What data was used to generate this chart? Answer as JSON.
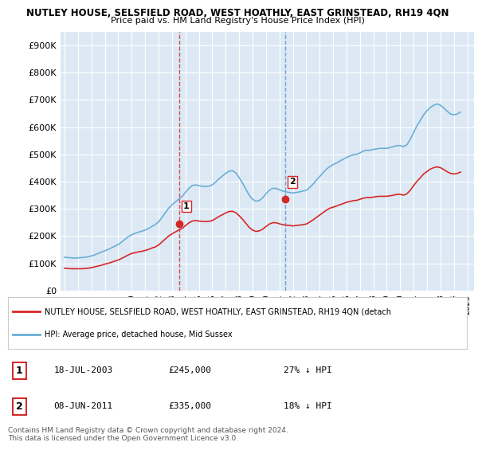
{
  "title_line1": "NUTLEY HOUSE, SELSFIELD ROAD, WEST HOATHLY, EAST GRINSTEAD, RH19 4QN",
  "title_line2": "Price paid vs. HM Land Registry's House Price Index (HPI)",
  "ylabel_ticks": [
    "£0",
    "£100K",
    "£200K",
    "£300K",
    "£400K",
    "£500K",
    "£600K",
    "£700K",
    "£800K",
    "£900K"
  ],
  "ytick_vals": [
    0,
    100000,
    200000,
    300000,
    400000,
    500000,
    600000,
    700000,
    800000,
    900000
  ],
  "xlim_start": 1995.0,
  "xlim_end": 2025.5,
  "ylim": [
    0,
    950000
  ],
  "hpi_color": "#6baed6",
  "price_color": "#d62728",
  "dashed_color": "#d62728",
  "bg_plot": "#dce9f5",
  "bg_fig": "#ffffff",
  "grid_color": "#ffffff",
  "sale1_x": 2003.54,
  "sale1_y": 245000,
  "sale1_label": "1",
  "sale2_x": 2011.44,
  "sale2_y": 335000,
  "sale2_label": "2",
  "legend_line1": "NUTLEY HOUSE, SELSFIELD ROAD, WEST HOATHLY, EAST GRINSTEAD, RH19 4QN (detach",
  "legend_line2": "HPI: Average price, detached house, Mid Sussex",
  "table_row1_num": "1",
  "table_row1_date": "18-JUL-2003",
  "table_row1_price": "£245,000",
  "table_row1_hpi": "27% ↓ HPI",
  "table_row2_num": "2",
  "table_row2_date": "08-JUN-2011",
  "table_row2_price": "£335,000",
  "table_row2_hpi": "18% ↓ HPI",
  "footer": "Contains HM Land Registry data © Crown copyright and database right 2024.\nThis data is licensed under the Open Government Licence v3.0.",
  "hpi_data_x": [
    1995.0,
    1995.25,
    1995.5,
    1995.75,
    1996.0,
    1996.25,
    1996.5,
    1996.75,
    1997.0,
    1997.25,
    1997.5,
    1997.75,
    1998.0,
    1998.25,
    1998.5,
    1998.75,
    1999.0,
    1999.25,
    1999.5,
    1999.75,
    2000.0,
    2000.25,
    2000.5,
    2000.75,
    2001.0,
    2001.25,
    2001.5,
    2001.75,
    2002.0,
    2002.25,
    2002.5,
    2002.75,
    2003.0,
    2003.25,
    2003.5,
    2003.75,
    2004.0,
    2004.25,
    2004.5,
    2004.75,
    2005.0,
    2005.25,
    2005.5,
    2005.75,
    2006.0,
    2006.25,
    2006.5,
    2006.75,
    2007.0,
    2007.25,
    2007.5,
    2007.75,
    2008.0,
    2008.25,
    2008.5,
    2008.75,
    2009.0,
    2009.25,
    2009.5,
    2009.75,
    2010.0,
    2010.25,
    2010.5,
    2010.75,
    2011.0,
    2011.25,
    2011.5,
    2011.75,
    2012.0,
    2012.25,
    2012.5,
    2012.75,
    2013.0,
    2013.25,
    2013.5,
    2013.75,
    2014.0,
    2014.25,
    2014.5,
    2014.75,
    2015.0,
    2015.25,
    2015.5,
    2015.75,
    2016.0,
    2016.25,
    2016.5,
    2016.75,
    2017.0,
    2017.25,
    2017.5,
    2017.75,
    2018.0,
    2018.25,
    2018.5,
    2018.75,
    2019.0,
    2019.25,
    2019.5,
    2019.75,
    2020.0,
    2020.25,
    2020.5,
    2020.75,
    2021.0,
    2021.25,
    2021.5,
    2021.75,
    2022.0,
    2022.25,
    2022.5,
    2022.75,
    2023.0,
    2023.25,
    2023.5,
    2023.75,
    2024.0,
    2024.25,
    2024.5
  ],
  "hpi_data_y": [
    122000,
    121000,
    120000,
    119000,
    120000,
    121000,
    122000,
    124000,
    127000,
    131000,
    136000,
    141000,
    146000,
    151000,
    157000,
    163000,
    169000,
    178000,
    188000,
    198000,
    205000,
    210000,
    214000,
    218000,
    222000,
    228000,
    235000,
    242000,
    252000,
    268000,
    285000,
    302000,
    315000,
    325000,
    335000,
    345000,
    360000,
    375000,
    385000,
    388000,
    385000,
    383000,
    382000,
    383000,
    388000,
    398000,
    410000,
    420000,
    430000,
    438000,
    440000,
    432000,
    415000,
    395000,
    372000,
    350000,
    335000,
    328000,
    330000,
    340000,
    355000,
    368000,
    375000,
    375000,
    370000,
    365000,
    362000,
    360000,
    358000,
    360000,
    362000,
    365000,
    368000,
    378000,
    390000,
    405000,
    418000,
    432000,
    445000,
    455000,
    462000,
    468000,
    475000,
    482000,
    488000,
    494000,
    498000,
    500000,
    505000,
    512000,
    515000,
    515000,
    518000,
    520000,
    522000,
    522000,
    522000,
    525000,
    528000,
    532000,
    532000,
    528000,
    535000,
    555000,
    580000,
    605000,
    625000,
    645000,
    660000,
    672000,
    680000,
    685000,
    680000,
    670000,
    658000,
    648000,
    645000,
    648000,
    655000
  ],
  "price_data_x": [
    1995.0,
    1995.25,
    1995.5,
    1995.75,
    1996.0,
    1996.25,
    1996.5,
    1996.75,
    1997.0,
    1997.25,
    1997.5,
    1997.75,
    1998.0,
    1998.25,
    1998.5,
    1998.75,
    1999.0,
    1999.25,
    1999.5,
    1999.75,
    2000.0,
    2000.25,
    2000.5,
    2000.75,
    2001.0,
    2001.25,
    2001.5,
    2001.75,
    2002.0,
    2002.25,
    2002.5,
    2002.75,
    2003.0,
    2003.25,
    2003.5,
    2003.75,
    2004.0,
    2004.25,
    2004.5,
    2004.75,
    2005.0,
    2005.25,
    2005.5,
    2005.75,
    2006.0,
    2006.25,
    2006.5,
    2006.75,
    2007.0,
    2007.25,
    2007.5,
    2007.75,
    2008.0,
    2008.25,
    2008.5,
    2008.75,
    2009.0,
    2009.25,
    2009.5,
    2009.75,
    2010.0,
    2010.25,
    2010.5,
    2010.75,
    2011.0,
    2011.25,
    2011.5,
    2011.75,
    2012.0,
    2012.25,
    2012.5,
    2012.75,
    2013.0,
    2013.25,
    2013.5,
    2013.75,
    2014.0,
    2014.25,
    2014.5,
    2014.75,
    2015.0,
    2015.25,
    2015.5,
    2015.75,
    2016.0,
    2016.25,
    2016.5,
    2016.75,
    2017.0,
    2017.25,
    2017.5,
    2017.75,
    2018.0,
    2018.25,
    2018.5,
    2018.75,
    2019.0,
    2019.25,
    2019.5,
    2019.75,
    2020.0,
    2020.25,
    2020.5,
    2020.75,
    2021.0,
    2021.25,
    2021.5,
    2021.75,
    2022.0,
    2022.25,
    2022.5,
    2022.75,
    2023.0,
    2023.25,
    2023.5,
    2023.75,
    2024.0,
    2024.25,
    2024.5
  ],
  "price_data_y": [
    82000,
    81000,
    80000,
    80000,
    80000,
    80000,
    81000,
    82000,
    84000,
    87000,
    90000,
    93000,
    97000,
    100000,
    104000,
    108000,
    112000,
    118000,
    124000,
    131000,
    136000,
    139000,
    142000,
    144000,
    147000,
    151000,
    156000,
    160000,
    167000,
    178000,
    189000,
    200000,
    208000,
    215000,
    222000,
    228000,
    238000,
    248000,
    255000,
    257000,
    255000,
    254000,
    253000,
    254000,
    257000,
    264000,
    272000,
    278000,
    285000,
    290000,
    291000,
    286000,
    275000,
    262000,
    247000,
    232000,
    222000,
    217000,
    219000,
    225000,
    235000,
    244000,
    249000,
    249000,
    245000,
    242000,
    240000,
    239000,
    237000,
    239000,
    240000,
    242000,
    244000,
    251000,
    259000,
    268000,
    277000,
    286000,
    295000,
    302000,
    306000,
    310000,
    315000,
    319000,
    324000,
    327000,
    330000,
    331000,
    335000,
    339000,
    341000,
    341000,
    343000,
    345000,
    346000,
    346000,
    346000,
    348000,
    350000,
    353000,
    353000,
    350000,
    355000,
    368000,
    385000,
    401000,
    414000,
    428000,
    437000,
    446000,
    451000,
    454000,
    451000,
    444000,
    436000,
    430000,
    428000,
    430000,
    435000
  ]
}
